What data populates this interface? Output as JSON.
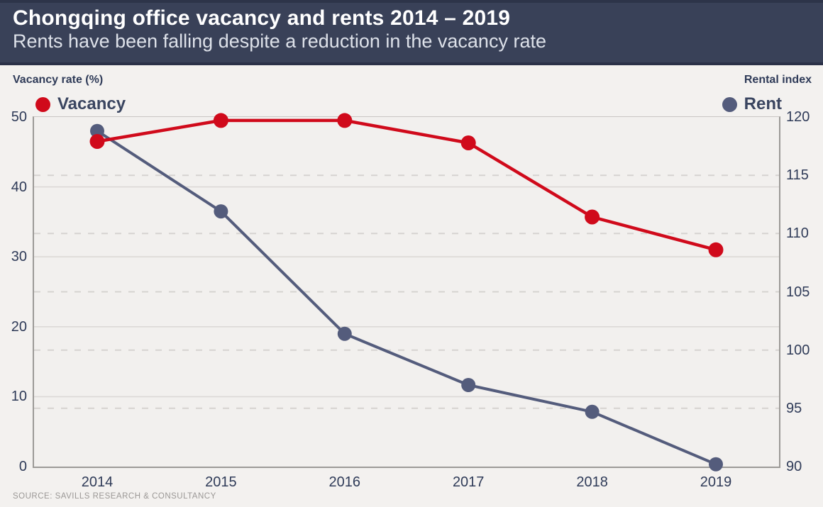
{
  "header": {
    "title": "Chongqing office vacancy and rents 2014 – 2019",
    "subtitle": "Rents have  been falling despite a reduction in the vacancy rate"
  },
  "chart": {
    "left_axis_title": "Vacancy rate (%)",
    "right_axis_title": "Rental index",
    "legend": [
      {
        "label": "Vacancy",
        "color": "#d00a1b"
      },
      {
        "label": "Rent",
        "color": "#545c7c"
      }
    ]
  },
  "source": "SOURCE: SAVILLS RESEARCH & CONSULTANCY",
  "colors": {
    "header_bg": "#394158",
    "page_bg": "#f3f1ef",
    "vacancy_red": "#d00a1b",
    "rent_navy": "#545c7c",
    "text_navy": "#2f3b58",
    "grid_solid": "#dcd9d6",
    "grid_dashed": "#d6d3d0",
    "plot_border": "#9c9a97"
  },
  "chart_data": {
    "type": "line",
    "title": "Chongqing office vacancy and rents 2014 – 2019",
    "subtitle": "Rents have been falling despite a reduction in the vacancy rate",
    "categories": [
      "2014",
      "2015",
      "2016",
      "2017",
      "2018",
      "2019"
    ],
    "series": [
      {
        "name": "Vacancy",
        "axis": "left",
        "color": "#d00a1b",
        "values": [
          46.5,
          49.5,
          49.5,
          46.3,
          35.7,
          31.0
        ]
      },
      {
        "name": "Rent",
        "axis": "right",
        "color": "#545c7c",
        "values": [
          118.8,
          111.9,
          101.4,
          97.0,
          94.7,
          90.2
        ]
      }
    ],
    "left_axis": {
      "label": "Vacancy rate (%)",
      "min": 0,
      "max": 50,
      "ticks": [
        0,
        10,
        20,
        30,
        40,
        50
      ],
      "gridline": "solid"
    },
    "right_axis": {
      "label": "Rental index",
      "min": 90,
      "max": 120,
      "ticks": [
        90,
        95,
        100,
        105,
        110,
        115,
        120
      ],
      "gridline": "dashed"
    },
    "grid": true,
    "legend_position": "top",
    "marker": "circle"
  }
}
